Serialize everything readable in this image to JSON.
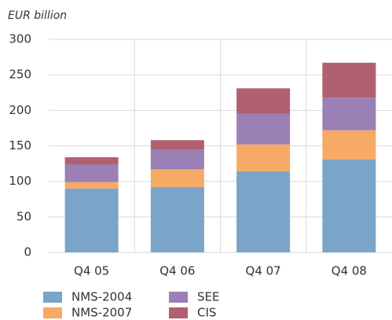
{
  "chart_data": {
    "type": "stacked_bar",
    "subtitle": "EUR billion",
    "categories": [
      "Q4 05",
      "Q4 06",
      "Q4 07",
      "Q4 08"
    ],
    "series": [
      {
        "name": "NMS-2004",
        "color": "#7ba4c9",
        "values": [
          90,
          92,
          114,
          131
        ]
      },
      {
        "name": "NMS-2007",
        "color": "#f7aa66",
        "values": [
          9,
          25,
          38,
          41
        ]
      },
      {
        "name": "SEE",
        "color": "#9b80b6",
        "values": [
          25,
          28,
          43,
          46
        ]
      },
      {
        "name": "CIS",
        "color": "#b0606f",
        "values": [
          10,
          13,
          36,
          49
        ]
      }
    ],
    "ylim": [
      0,
      300
    ],
    "yticks": [
      0,
      50,
      100,
      150,
      200,
      250,
      300
    ],
    "grid": true
  }
}
